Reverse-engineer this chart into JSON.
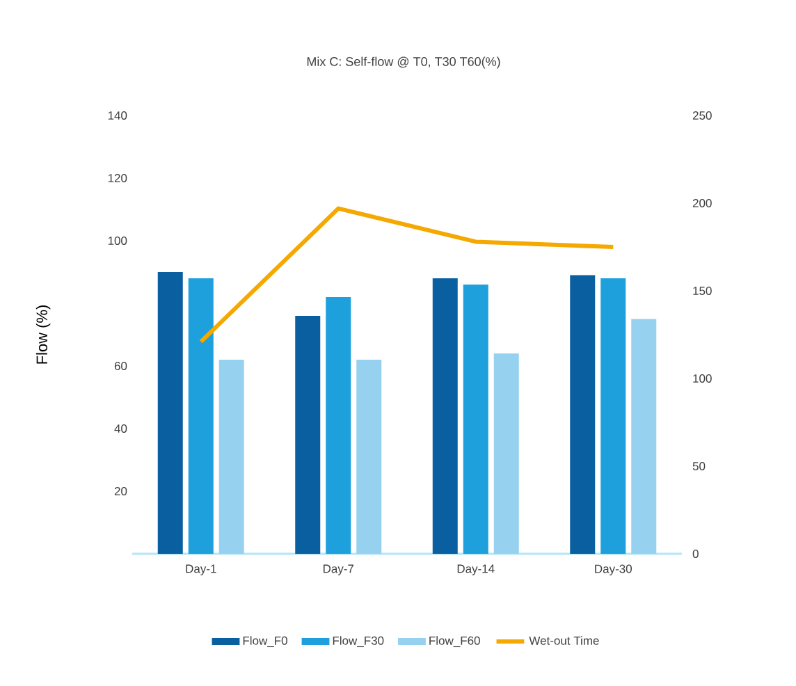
{
  "chart_data": {
    "type": "bar",
    "title": "Mix C: Self-flow @ T0, T30 T60(%)",
    "ylabel": "Flow (%)",
    "categories": [
      "Day-1",
      "Day-7",
      "Day-14",
      "Day-30"
    ],
    "series": [
      {
        "name": "Flow_F0",
        "color": "#0a5fa0",
        "values": [
          90,
          76,
          88,
          89
        ]
      },
      {
        "name": "Flow_F30",
        "color": "#1ea0dc",
        "values": [
          88,
          82,
          86,
          88
        ]
      },
      {
        "name": "Flow_F60",
        "color": "#96d2f0",
        "values": [
          62,
          62,
          64,
          75
        ]
      },
      {
        "name": "Wet-out Time",
        "type": "line",
        "axis": "y2",
        "color": "#f5a800",
        "values": [
          121,
          197,
          178,
          175
        ]
      }
    ],
    "ylim": [
      0,
      140
    ],
    "yticks": [
      20,
      40,
      60,
      100,
      120,
      140
    ],
    "y2lim": [
      0,
      250
    ],
    "y2ticks": [
      0,
      50,
      100,
      150,
      200,
      250
    ],
    "legend": "bottom"
  }
}
